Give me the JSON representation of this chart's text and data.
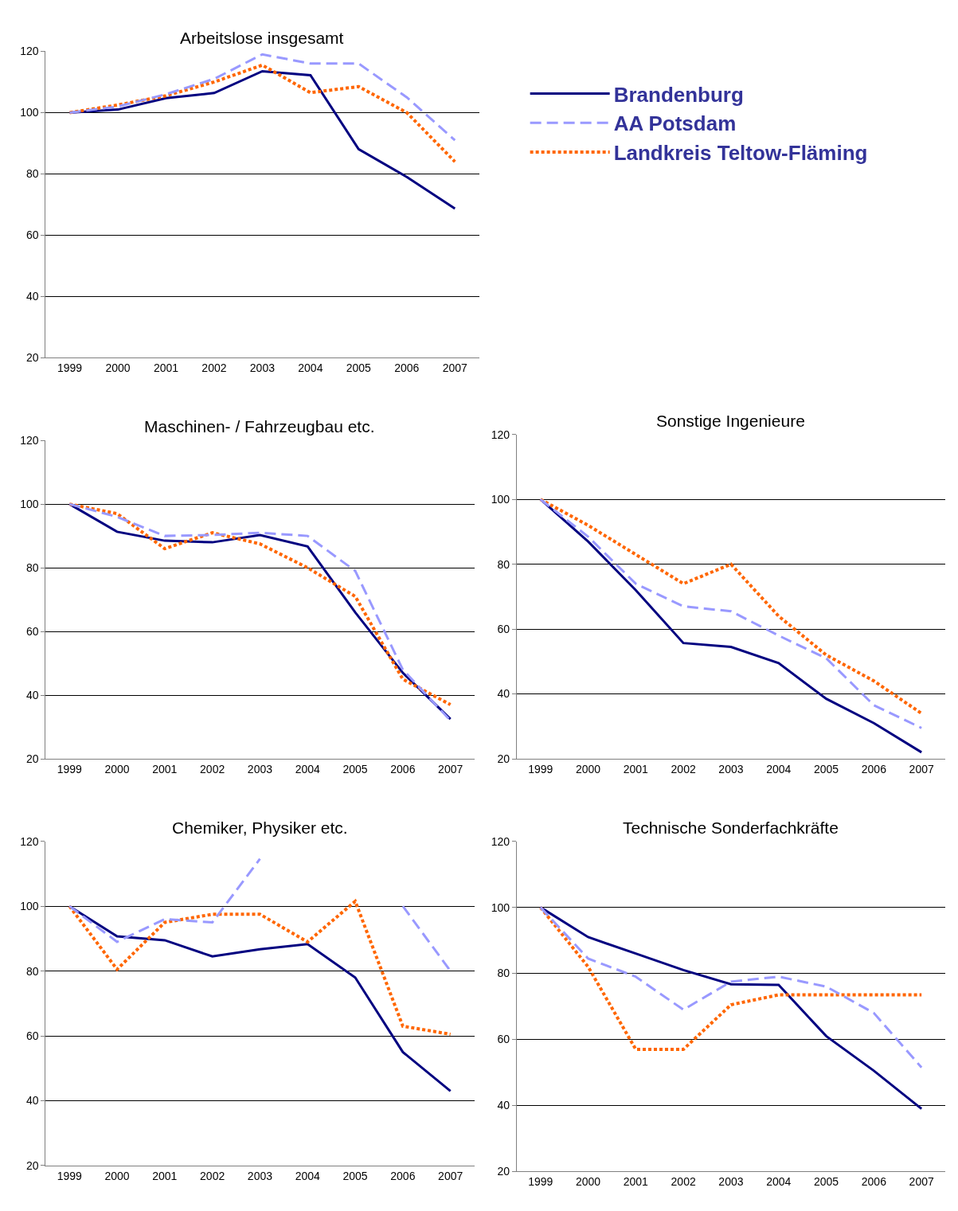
{
  "chart_data": [
    {
      "type": "line",
      "title": "Arbeitslose insgesamt",
      "categories": [
        "1999",
        "2000",
        "2001",
        "2002",
        "2003",
        "2004",
        "2005",
        "2006",
        "2007"
      ],
      "ylim": [
        20,
        120
      ],
      "yticks": [
        20,
        40,
        60,
        80,
        100,
        120
      ],
      "grid": "y",
      "legend": "right",
      "series": [
        {
          "name": "Brandenburg",
          "color": "#000080",
          "line_style": "solid",
          "values": [
            100,
            101,
            104.7,
            106.4,
            113.5,
            112.2,
            88.1,
            79,
            68.7
          ]
        },
        {
          "name": "AA Potsdam",
          "color": "#9999ff",
          "line_style": "dashed",
          "values": [
            100,
            102,
            106,
            111,
            119,
            116,
            116,
            105,
            91
          ]
        },
        {
          "name": "Landkreis Teltow-Fläming",
          "color": "#ff6600",
          "line_style": "dotted",
          "values": [
            100,
            102.5,
            105.5,
            110,
            115.5,
            106.5,
            108.5,
            100,
            84
          ]
        }
      ]
    },
    {
      "type": "line",
      "title": "Maschinen- / Fahrzeugbau etc.",
      "categories": [
        "1999",
        "2000",
        "2001",
        "2002",
        "2003",
        "2004",
        "2005",
        "2006",
        "2007"
      ],
      "ylim": [
        20,
        120
      ],
      "yticks": [
        20,
        40,
        60,
        80,
        100,
        120
      ],
      "grid": "y",
      "series": [
        {
          "color": "#000080",
          "line_style": "solid",
          "values": [
            100,
            91.3,
            88.5,
            88,
            90.3,
            86.7,
            66,
            47,
            32.5
          ]
        },
        {
          "color": "#9999ff",
          "line_style": "dashed",
          "values": [
            100,
            96,
            90,
            90.3,
            91,
            90,
            79,
            48,
            32
          ]
        },
        {
          "color": "#ff6600",
          "line_style": "dotted",
          "values": [
            100,
            97,
            86,
            91,
            87.5,
            80,
            71,
            45,
            37
          ]
        }
      ]
    },
    {
      "type": "line",
      "title": "Sonstige Ingenieure",
      "categories": [
        "1999",
        "2000",
        "2001",
        "2002",
        "2003",
        "2004",
        "2005",
        "2006",
        "2007"
      ],
      "ylim": [
        20,
        120
      ],
      "yticks": [
        20,
        40,
        60,
        80,
        100,
        120
      ],
      "grid": "y",
      "series": [
        {
          "color": "#000080",
          "line_style": "solid",
          "values": [
            100,
            87,
            72,
            55.7,
            54.5,
            49.5,
            38.5,
            31,
            22
          ]
        },
        {
          "color": "#9999ff",
          "line_style": "dashed",
          "values": [
            100,
            88.5,
            74,
            67,
            65.5,
            58,
            51,
            36.5,
            29.5
          ]
        },
        {
          "color": "#ff6600",
          "line_style": "dotted",
          "values": [
            100,
            92,
            83,
            74,
            80,
            64,
            52,
            44,
            34
          ]
        }
      ]
    },
    {
      "type": "line",
      "title": "Chemiker, Physiker etc.",
      "categories": [
        "1999",
        "2000",
        "2001",
        "2002",
        "2003",
        "2004",
        "2005",
        "2006",
        "2007"
      ],
      "ylim": [
        20,
        120
      ],
      "yticks": [
        20,
        40,
        60,
        80,
        100,
        120
      ],
      "grid": "y",
      "series": [
        {
          "color": "#000080",
          "line_style": "solid",
          "values": [
            100,
            90.7,
            89.5,
            84.5,
            86.7,
            88.3,
            78,
            55,
            43
          ]
        },
        {
          "color": "#9999ff",
          "line_style": "dashed",
          "values": [
            100,
            89,
            96,
            95,
            114.6,
            null,
            null,
            100,
            80
          ]
        },
        {
          "color": "#ff6600",
          "line_style": "dotted",
          "values": [
            100,
            80.5,
            95,
            97.5,
            97.5,
            89,
            101.5,
            63,
            60.5
          ]
        }
      ]
    },
    {
      "type": "line",
      "title": "Technische Sonderfachkräfte",
      "categories": [
        "1999",
        "2000",
        "2001",
        "2002",
        "2003",
        "2004",
        "2005",
        "2006",
        "2007"
      ],
      "ylim": [
        20,
        120
      ],
      "yticks": [
        20,
        40,
        60,
        80,
        100,
        120
      ],
      "grid": "y",
      "series": [
        {
          "color": "#000080",
          "line_style": "solid",
          "values": [
            100,
            91,
            86,
            81,
            76.7,
            76.5,
            61,
            50.5,
            39
          ]
        },
        {
          "color": "#9999ff",
          "line_style": "dashed",
          "values": [
            100,
            84.5,
            79,
            69,
            77.5,
            79,
            76,
            68,
            51.5
          ]
        },
        {
          "color": "#ff6600",
          "line_style": "dotted",
          "values": [
            100,
            82,
            57,
            57,
            70.5,
            73.5,
            73.5,
            73.5,
            73.5
          ]
        }
      ]
    }
  ]
}
